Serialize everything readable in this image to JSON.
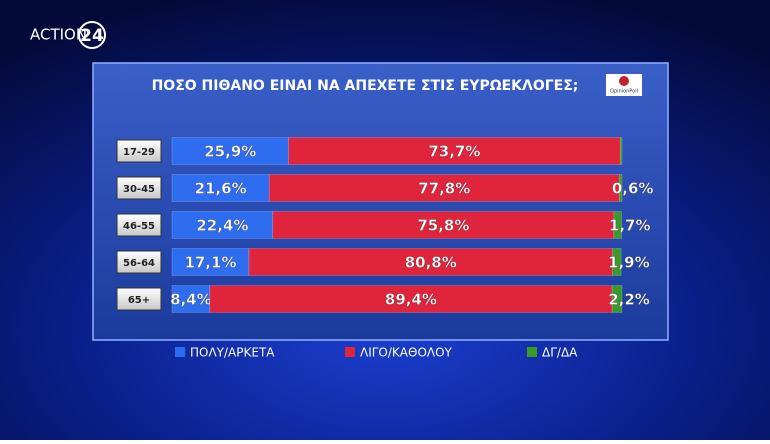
{
  "brand": {
    "name": "ACTION",
    "number": "24"
  },
  "chart_data": {
    "type": "stacked-bar",
    "title": "ΠΟΣΟ ΠΙΘΑΝΟ ΕΙΝΑΙ ΝΑ ΑΠΕΧΕΤΕ ΣΤΙΣ ΕΥΡΩΕΚΛΟΓΕΣ;",
    "source": "OpinionPoll",
    "categories": [
      "17-29",
      "30-45",
      "46-55",
      "56-64",
      "65+"
    ],
    "xlim": [
      0,
      100
    ],
    "legend": "bottom",
    "series": [
      {
        "name": "ΠΟΛΥ/ΑΡΚΕΤΑ",
        "color": "#2f6df0",
        "values": [
          25.9,
          21.6,
          22.4,
          17.1,
          8.4
        ],
        "value_labels": [
          "25,9%",
          "21,6%",
          "22,4%",
          "17,1%",
          "8,4%"
        ]
      },
      {
        "name": "ΛΙΓΟ/ΚΑΘΟΛΟΥ",
        "color": "#e0243c",
        "values": [
          73.7,
          77.8,
          75.8,
          80.8,
          89.4
        ],
        "value_labels": [
          "73,7%",
          "77,8%",
          "75,8%",
          "80,8%",
          "89,4%"
        ]
      },
      {
        "name": "ΔΓ/ΔΑ",
        "color": "#3a9a2a",
        "values": [
          0.4,
          0.6,
          1.7,
          1.9,
          2.2
        ],
        "value_labels": [
          null,
          "0,6%",
          "1,7%",
          "1,9%",
          "2,2%"
        ]
      }
    ]
  }
}
